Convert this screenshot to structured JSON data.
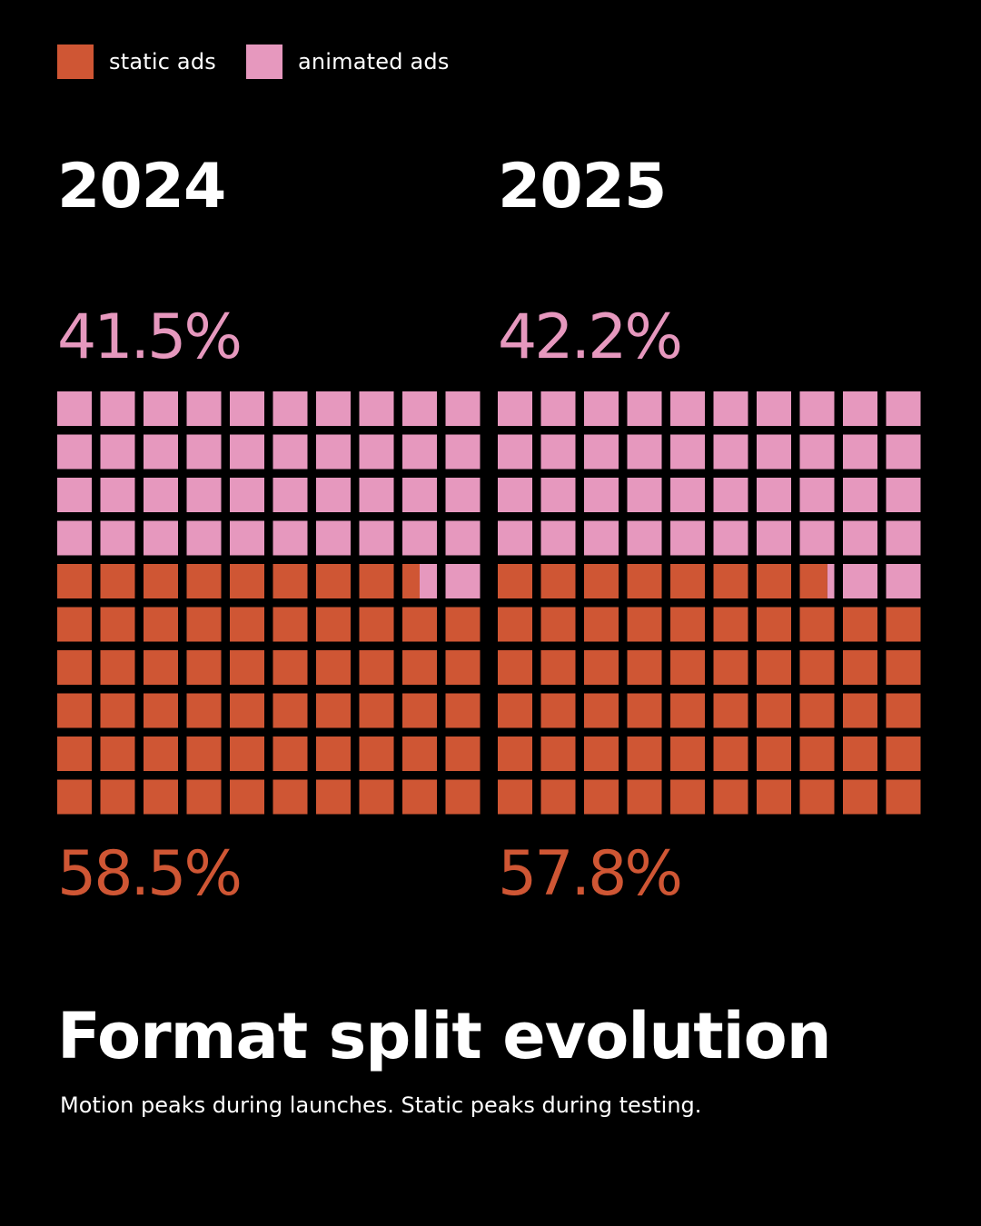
{
  "colors": {
    "static": "#cf5634",
    "animated": "#e698be",
    "background": "#000000",
    "text": "#ffffff"
  },
  "legend": {
    "static_label": "static ads",
    "animated_label": "animated ads"
  },
  "title": "Format split evolution",
  "subtitle": "Motion peaks during launches. Static peaks during testing.",
  "chart_data": {
    "type": "waffle",
    "title": "Format split evolution",
    "grid": {
      "rows": 10,
      "cols": 10,
      "cells": 100
    },
    "panels": [
      {
        "year": "2024",
        "animated_pct": 41.5,
        "static_pct": 58.5,
        "animated_label": "41.5%",
        "static_label": "58.5%"
      },
      {
        "year": "2025",
        "animated_pct": 42.2,
        "static_pct": 57.8,
        "animated_label": "42.2%",
        "static_label": "57.8%"
      }
    ]
  }
}
